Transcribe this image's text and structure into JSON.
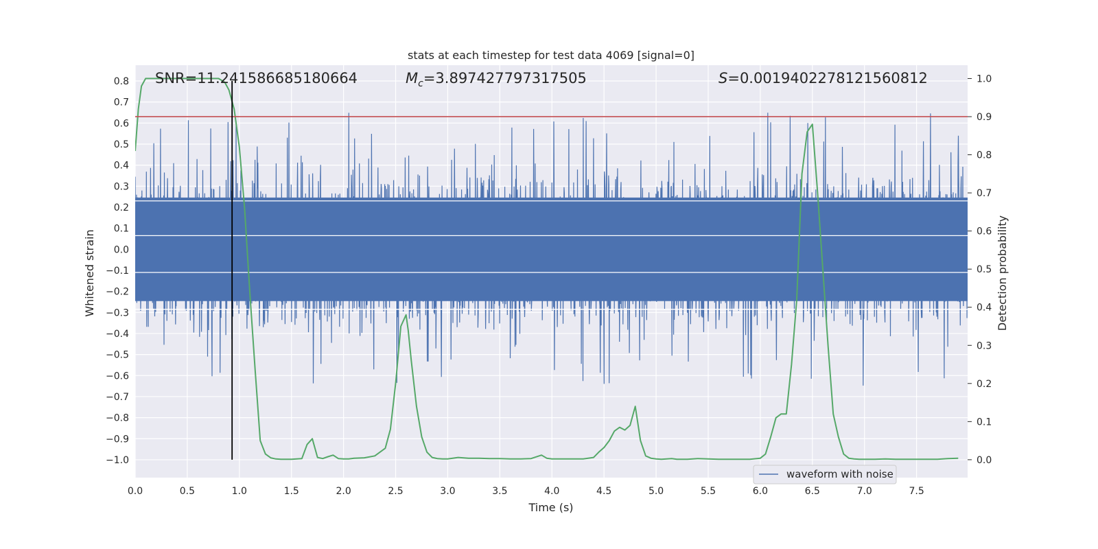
{
  "chart_data": {
    "type": "line",
    "title": "stats at each timestep for test data 4069 [signal=0]",
    "xlabel": "Time (s)",
    "ylabel": "Whitened strain",
    "y2label": "Detection probability",
    "xlim": [
      0.0,
      7.99
    ],
    "ylim": [
      -1.085,
      0.875
    ],
    "y2lim": [
      -0.047,
      1.035
    ],
    "xticks": [
      "0.0",
      "0.5",
      "1.0",
      "1.5",
      "2.0",
      "2.5",
      "3.0",
      "3.5",
      "4.0",
      "4.5",
      "5.0",
      "5.5",
      "6.0",
      "6.5",
      "7.0",
      "7.5"
    ],
    "yticks": [
      "0.8",
      "0.7",
      "0.6",
      "0.5",
      "0.4",
      "0.3",
      "0.2",
      "0.1",
      "0.0",
      "−0.1",
      "−0.2",
      "−0.3",
      "−0.4",
      "−0.5",
      "−0.6",
      "−0.7",
      "−0.8",
      "−0.9",
      "−1.0"
    ],
    "y2ticks": [
      "1.0",
      "0.9",
      "0.8",
      "0.7",
      "0.6",
      "0.5",
      "0.4",
      "0.3",
      "0.2",
      "0.1",
      "0.0"
    ],
    "grid": true,
    "legend": {
      "placement": "lower-right",
      "entries": [
        "waveform with noise"
      ]
    },
    "annotations": {
      "snr_text": "SNR=11.241586685180664",
      "mc_symbol": "M",
      "mc_sub": "c",
      "mc_value": "=3.897427797317505",
      "s_symbol": "S",
      "s_value": "=0.0019402278121560812"
    },
    "threshold": {
      "axis": "y2",
      "value": 0.9,
      "color": "#c44e52"
    },
    "marker_line": {
      "x": 0.93,
      "y_from": -1.0,
      "y_to": 0.8,
      "color": "#000000"
    },
    "series": [
      {
        "name": "waveform with noise",
        "axis": "y",
        "color": "#4c72b0",
        "kind": "noise",
        "core_amplitude": 0.3,
        "spike_max": 0.78,
        "spike_min": -0.85
      },
      {
        "axis": "y2",
        "color": "#55a868",
        "x": [
          0.0,
          0.03,
          0.06,
          0.1,
          0.15,
          0.2,
          0.3,
          0.4,
          0.5,
          0.6,
          0.7,
          0.8,
          0.86,
          0.9,
          0.95,
          1.0,
          1.05,
          1.1,
          1.15,
          1.2,
          1.25,
          1.3,
          1.35,
          1.4,
          1.5,
          1.6,
          1.65,
          1.7,
          1.75,
          1.8,
          1.85,
          1.9,
          1.95,
          2.0,
          2.05,
          2.1,
          2.2,
          2.3,
          2.4,
          2.45,
          2.5,
          2.55,
          2.6,
          2.62,
          2.65,
          2.7,
          2.75,
          2.8,
          2.85,
          2.9,
          2.95,
          3.0,
          3.1,
          3.2,
          3.3,
          3.4,
          3.5,
          3.6,
          3.7,
          3.8,
          3.9,
          3.95,
          4.0,
          4.1,
          4.2,
          4.3,
          4.4,
          4.45,
          4.5,
          4.55,
          4.6,
          4.65,
          4.7,
          4.75,
          4.8,
          4.85,
          4.9,
          4.95,
          5.0,
          5.05,
          5.1,
          5.15,
          5.2,
          5.3,
          5.4,
          5.5,
          5.6,
          5.7,
          5.8,
          5.9,
          6.0,
          6.05,
          6.1,
          6.15,
          6.2,
          6.25,
          6.3,
          6.35,
          6.4,
          6.45,
          6.5,
          6.55,
          6.6,
          6.65,
          6.7,
          6.75,
          6.8,
          6.85,
          6.9,
          6.95,
          7.0,
          7.1,
          7.2,
          7.3,
          7.4,
          7.5,
          7.6,
          7.7,
          7.8,
          7.9
        ],
        "values": [
          0.81,
          0.92,
          0.98,
          1.0,
          1.0,
          1.0,
          1.0,
          1.0,
          1.0,
          1.0,
          1.0,
          1.0,
          0.99,
          0.97,
          0.92,
          0.82,
          0.66,
          0.44,
          0.24,
          0.05,
          0.015,
          0.005,
          0.002,
          0.001,
          0.001,
          0.003,
          0.04,
          0.055,
          0.006,
          0.003,
          0.008,
          0.012,
          0.003,
          0.002,
          0.002,
          0.004,
          0.005,
          0.01,
          0.03,
          0.08,
          0.2,
          0.35,
          0.38,
          0.34,
          0.26,
          0.14,
          0.06,
          0.02,
          0.006,
          0.003,
          0.002,
          0.002,
          0.006,
          0.004,
          0.004,
          0.003,
          0.003,
          0.002,
          0.002,
          0.003,
          0.012,
          0.004,
          0.002,
          0.002,
          0.002,
          0.002,
          0.006,
          0.02,
          0.032,
          0.05,
          0.075,
          0.085,
          0.078,
          0.09,
          0.14,
          0.05,
          0.01,
          0.004,
          0.002,
          0.001,
          0.002,
          0.003,
          0.001,
          0.001,
          0.003,
          0.002,
          0.001,
          0.001,
          0.001,
          0.001,
          0.004,
          0.015,
          0.06,
          0.11,
          0.12,
          0.12,
          0.25,
          0.42,
          0.75,
          0.86,
          0.88,
          0.7,
          0.5,
          0.3,
          0.12,
          0.06,
          0.015,
          0.004,
          0.002,
          0.001,
          0.001,
          0.001,
          0.002,
          0.001,
          0.001,
          0.001,
          0.001,
          0.001,
          0.003,
          0.004
        ]
      }
    ]
  }
}
